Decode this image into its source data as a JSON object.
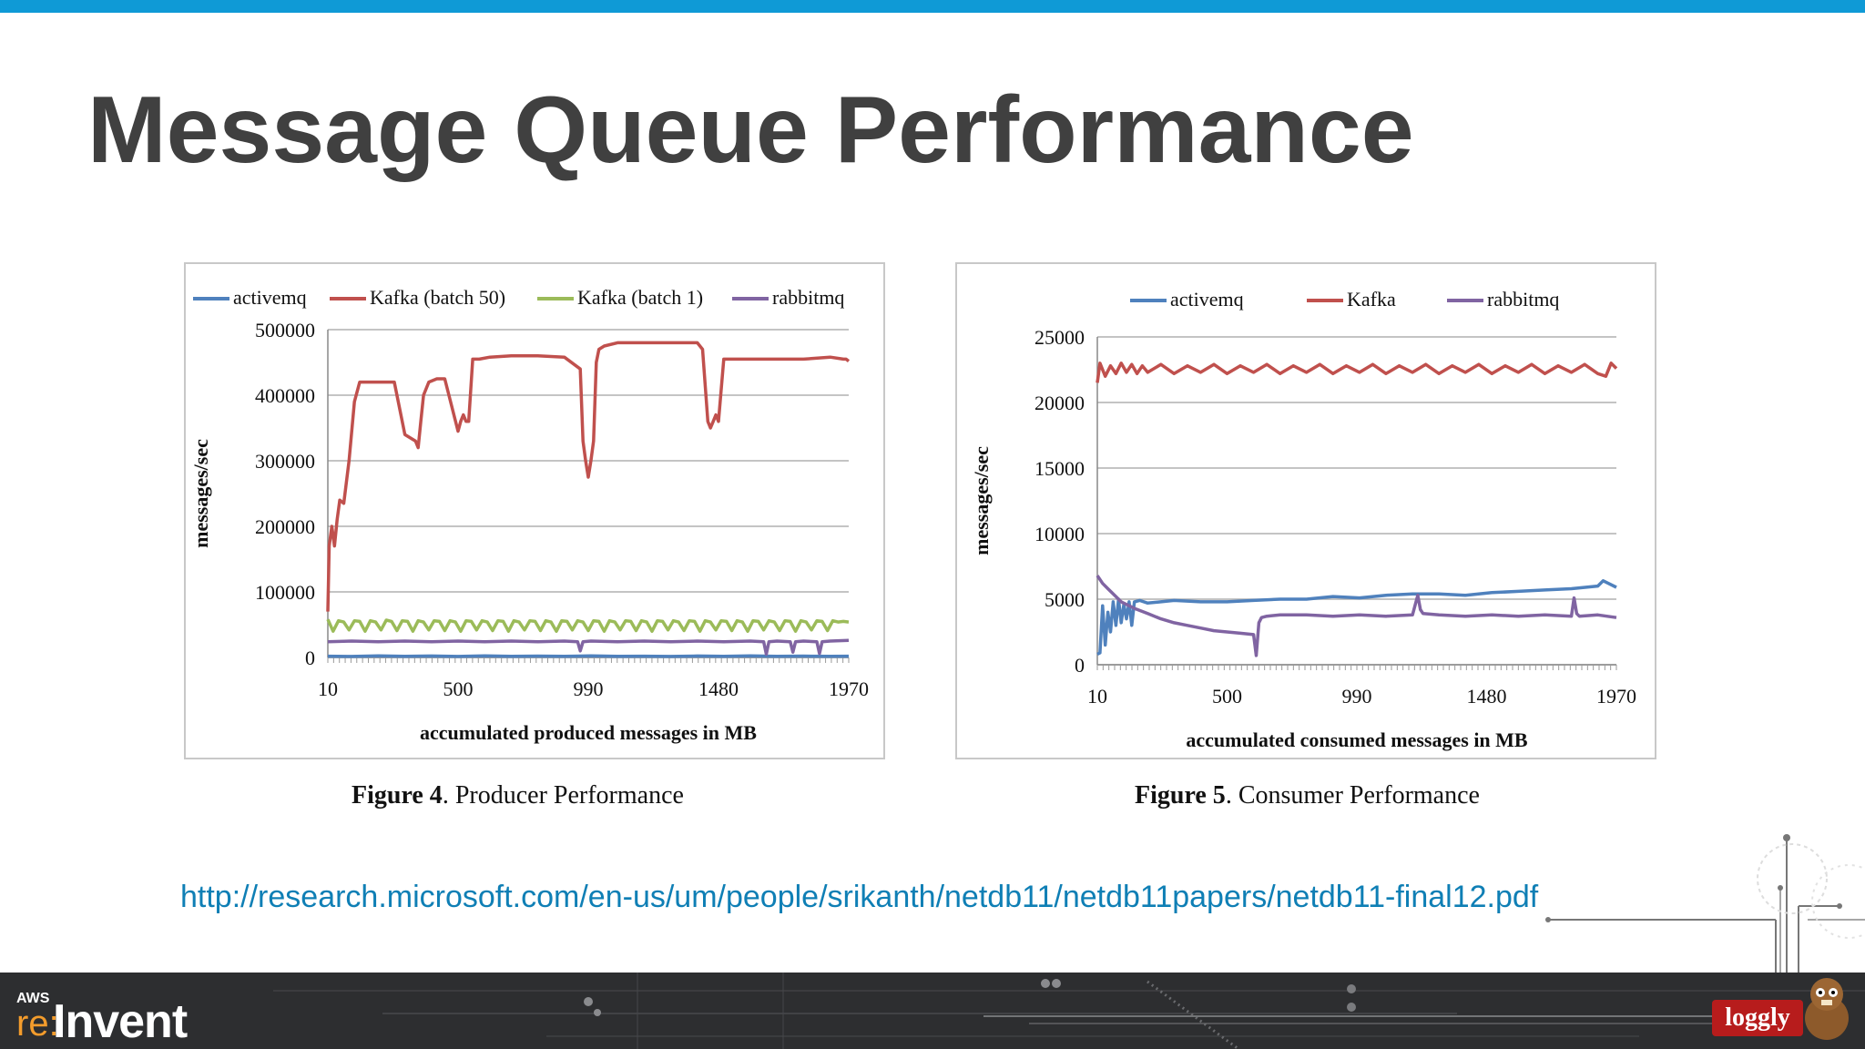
{
  "slide": {
    "title": "Message Queue Performance",
    "source_url": "http://research.microsoft.com/en-us/um/people/srikanth/netdb11/netdb11papers/netdb11-final12.pdf",
    "event_logo_small": "AWS",
    "event_logo_re": "re:",
    "event_logo_main": "Invent",
    "sponsor_badge": "loggly"
  },
  "colors": {
    "accent_bar": "#0f9ad6",
    "activemq": "#4f81bd",
    "kafka": "#c0504d",
    "kafka_batch1": "#9bbb59",
    "rabbitmq": "#8064a2"
  },
  "figures": [
    {
      "label": "Figure 4",
      "caption": ". Producer Performance"
    },
    {
      "label": "Figure 5",
      "caption": ". Consumer Performance"
    }
  ],
  "chart_data": [
    {
      "type": "line",
      "title": "",
      "xlabel": "accumulated produced messages in MB",
      "ylabel": "messages/sec",
      "ylim": [
        0,
        500000
      ],
      "yticks": [
        0,
        100000,
        200000,
        300000,
        400000,
        500000
      ],
      "xlim": [
        10,
        1970
      ],
      "xticks": [
        10,
        500,
        990,
        1480,
        1970
      ],
      "grid": true,
      "legend_position": "top",
      "series": [
        {
          "name": "activemq",
          "color": "#4f81bd",
          "x": [
            10,
            100,
            200,
            300,
            400,
            500,
            600,
            700,
            800,
            900,
            1000,
            1100,
            1200,
            1300,
            1400,
            1500,
            1600,
            1700,
            1800,
            1900,
            1970
          ],
          "y": [
            2000,
            1500,
            2500,
            1800,
            2200,
            1500,
            2400,
            1700,
            2100,
            1600,
            2300,
            1800,
            2000,
            1500,
            2200,
            1700,
            2400,
            1800,
            2100,
            1600,
            2000
          ]
        },
        {
          "name": "Kafka (batch 50)",
          "color": "#c0504d",
          "x": [
            10,
            15,
            25,
            35,
            45,
            55,
            70,
            90,
            110,
            130,
            150,
            180,
            220,
            260,
            300,
            340,
            350,
            360,
            370,
            390,
            420,
            450,
            500,
            510,
            520,
            530,
            540,
            555,
            560,
            580,
            620,
            700,
            800,
            900,
            960,
            970,
            980,
            990,
            1000,
            1010,
            1015,
            1020,
            1030,
            1050,
            1100,
            1200,
            1300,
            1400,
            1420,
            1440,
            1450,
            1460,
            1470,
            1480,
            1500,
            1600,
            1700,
            1800,
            1900,
            1950,
            1960,
            1970
          ],
          "y": [
            70000,
            170000,
            200000,
            170000,
            210000,
            240000,
            235000,
            300000,
            390000,
            420000,
            420000,
            420000,
            420000,
            420000,
            340000,
            330000,
            320000,
            360000,
            400000,
            420000,
            425000,
            425000,
            345000,
            360000,
            370000,
            360000,
            360000,
            455000,
            455000,
            455000,
            458000,
            460000,
            460000,
            458000,
            440000,
            330000,
            300000,
            275000,
            300000,
            330000,
            390000,
            450000,
            470000,
            475000,
            480000,
            480000,
            480000,
            480000,
            470000,
            360000,
            350000,
            360000,
            370000,
            360000,
            455000,
            455000,
            455000,
            455000,
            458000,
            455000,
            455000,
            452000
          ]
        },
        {
          "name": "Kafka (batch 1)",
          "color": "#9bbb59",
          "x": [
            10,
            30,
            50,
            70,
            90,
            110,
            130,
            150,
            170,
            190,
            210,
            230,
            250,
            270,
            290,
            310,
            330,
            350,
            370,
            390,
            410,
            430,
            450,
            470,
            490,
            510,
            530,
            550,
            570,
            590,
            610,
            630,
            650,
            670,
            690,
            710,
            730,
            750,
            770,
            790,
            810,
            830,
            850,
            870,
            890,
            910,
            930,
            950,
            970,
            990,
            1010,
            1030,
            1050,
            1070,
            1090,
            1110,
            1130,
            1150,
            1170,
            1190,
            1210,
            1230,
            1250,
            1270,
            1290,
            1310,
            1330,
            1350,
            1370,
            1390,
            1410,
            1430,
            1450,
            1470,
            1490,
            1510,
            1530,
            1550,
            1570,
            1590,
            1610,
            1630,
            1650,
            1670,
            1690,
            1710,
            1730,
            1750,
            1770,
            1790,
            1810,
            1830,
            1850,
            1870,
            1890,
            1910,
            1930,
            1950,
            1970
          ],
          "y": [
            58000,
            40000,
            56000,
            54000,
            42000,
            56000,
            55000,
            40000,
            56000,
            54000,
            42000,
            57000,
            55000,
            41000,
            56000,
            55000,
            40000,
            56000,
            54000,
            42000,
            56000,
            55000,
            41000,
            56000,
            54000,
            40000,
            56000,
            55000,
            42000,
            56000,
            54000,
            41000,
            56000,
            55000,
            40000,
            56000,
            54000,
            42000,
            56000,
            55000,
            41000,
            56000,
            54000,
            40000,
            56000,
            55000,
            42000,
            56000,
            54000,
            41000,
            56000,
            55000,
            40000,
            56000,
            54000,
            42000,
            56000,
            55000,
            41000,
            56000,
            54000,
            40000,
            56000,
            55000,
            42000,
            56000,
            54000,
            41000,
            56000,
            55000,
            40000,
            56000,
            54000,
            42000,
            56000,
            55000,
            41000,
            56000,
            54000,
            40000,
            56000,
            55000,
            42000,
            56000,
            54000,
            41000,
            56000,
            55000,
            40000,
            56000,
            54000,
            42000,
            56000,
            55000,
            41000,
            56000,
            54000,
            55000,
            54000
          ]
        },
        {
          "name": "rabbitmq",
          "color": "#8064a2",
          "x": [
            10,
            100,
            200,
            300,
            400,
            500,
            600,
            700,
            800,
            900,
            950,
            960,
            970,
            1000,
            1100,
            1200,
            1300,
            1400,
            1500,
            1600,
            1650,
            1660,
            1670,
            1700,
            1750,
            1760,
            1770,
            1800,
            1850,
            1860,
            1870,
            1900,
            1970
          ],
          "y": [
            24000,
            25000,
            24000,
            25000,
            24000,
            25000,
            24000,
            25000,
            24000,
            25000,
            24000,
            10000,
            24000,
            25000,
            24000,
            25000,
            24000,
            25000,
            24000,
            25000,
            24000,
            5000,
            24000,
            25000,
            24000,
            8000,
            24000,
            25000,
            24000,
            6000,
            24000,
            25000,
            26000
          ]
        }
      ]
    },
    {
      "type": "line",
      "title": "",
      "xlabel": "accumulated consumed messages in MB",
      "ylabel": "messages/sec",
      "ylim": [
        0,
        25000
      ],
      "yticks": [
        0,
        5000,
        10000,
        15000,
        20000,
        25000
      ],
      "xlim": [
        10,
        1970
      ],
      "xticks": [
        10,
        500,
        990,
        1480,
        1970
      ],
      "grid": true,
      "legend_position": "top",
      "series": [
        {
          "name": "activemq",
          "color": "#4f81bd",
          "x": [
            10,
            20,
            30,
            40,
            50,
            60,
            70,
            80,
            90,
            100,
            110,
            120,
            130,
            140,
            150,
            170,
            200,
            250,
            300,
            400,
            500,
            600,
            700,
            800,
            900,
            1000,
            1100,
            1200,
            1300,
            1400,
            1500,
            1600,
            1700,
            1800,
            1900,
            1920,
            1940,
            1970
          ],
          "y": [
            800,
            900,
            4500,
            1500,
            4000,
            2500,
            4800,
            3000,
            5000,
            3200,
            4600,
            3500,
            4800,
            3000,
            4800,
            4900,
            4700,
            4800,
            4900,
            4800,
            4800,
            4900,
            5000,
            5000,
            5200,
            5100,
            5300,
            5400,
            5400,
            5300,
            5500,
            5600,
            5700,
            5800,
            6000,
            6400,
            6200,
            5900
          ]
        },
        {
          "name": "Kafka",
          "color": "#c0504d",
          "x": [
            10,
            20,
            40,
            60,
            80,
            100,
            120,
            140,
            160,
            180,
            200,
            250,
            300,
            350,
            400,
            450,
            500,
            550,
            600,
            650,
            700,
            750,
            800,
            850,
            900,
            950,
            1000,
            1050,
            1100,
            1150,
            1200,
            1250,
            1300,
            1350,
            1400,
            1450,
            1500,
            1550,
            1600,
            1650,
            1700,
            1750,
            1800,
            1850,
            1900,
            1930,
            1950,
            1970
          ],
          "y": [
            21500,
            23000,
            22000,
            22800,
            22200,
            23000,
            22300,
            22900,
            22200,
            22800,
            22300,
            22900,
            22200,
            22800,
            22300,
            22900,
            22200,
            22800,
            22300,
            22900,
            22200,
            22800,
            22300,
            22900,
            22200,
            22800,
            22300,
            22900,
            22200,
            22800,
            22300,
            22900,
            22200,
            22800,
            22300,
            22900,
            22200,
            22800,
            22300,
            22900,
            22200,
            22800,
            22300,
            22900,
            22200,
            22000,
            23000,
            22600
          ]
        },
        {
          "name": "rabbitmq",
          "color": "#8064a2",
          "x": [
            10,
            30,
            50,
            80,
            100,
            150,
            200,
            250,
            300,
            350,
            400,
            450,
            500,
            550,
            600,
            610,
            620,
            630,
            650,
            700,
            800,
            900,
            1000,
            1100,
            1200,
            1220,
            1230,
            1240,
            1300,
            1400,
            1500,
            1600,
            1700,
            1800,
            1810,
            1820,
            1830,
            1900,
            1970
          ],
          "y": [
            6800,
            6200,
            5800,
            5200,
            4800,
            4300,
            3900,
            3500,
            3200,
            3000,
            2800,
            2600,
            2500,
            2400,
            2300,
            700,
            3200,
            3600,
            3700,
            3800,
            3800,
            3700,
            3800,
            3700,
            3800,
            5300,
            4200,
            3900,
            3800,
            3700,
            3800,
            3700,
            3800,
            3700,
            5100,
            3900,
            3700,
            3800,
            3600
          ]
        }
      ]
    }
  ]
}
